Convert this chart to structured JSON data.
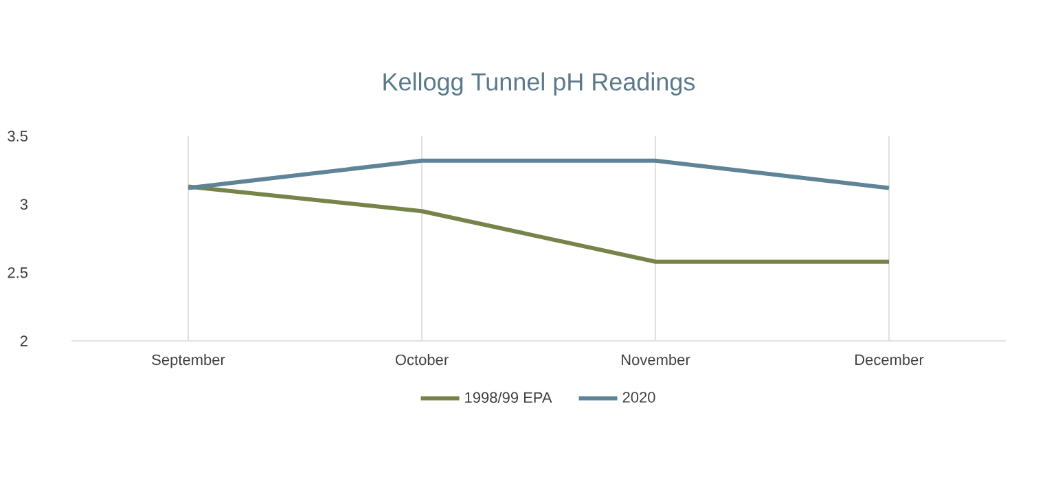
{
  "chart_data": {
    "type": "line",
    "title": "Kellogg Tunnel pH Readings",
    "categories": [
      "September",
      "October",
      "November",
      "December"
    ],
    "series": [
      {
        "name": "1998/99 EPA",
        "color": "#76844a",
        "values": [
          3.13,
          2.95,
          2.58,
          2.58
        ]
      },
      {
        "name": "2020",
        "color": "#5f8497",
        "values": [
          3.12,
          3.32,
          3.32,
          3.12
        ]
      }
    ],
    "ylim": [
      2,
      3.5
    ],
    "yticks": [
      2,
      2.5,
      3,
      3.5
    ],
    "grid": "x",
    "legend": "bottom",
    "marker": "none",
    "line_style": "solid"
  }
}
